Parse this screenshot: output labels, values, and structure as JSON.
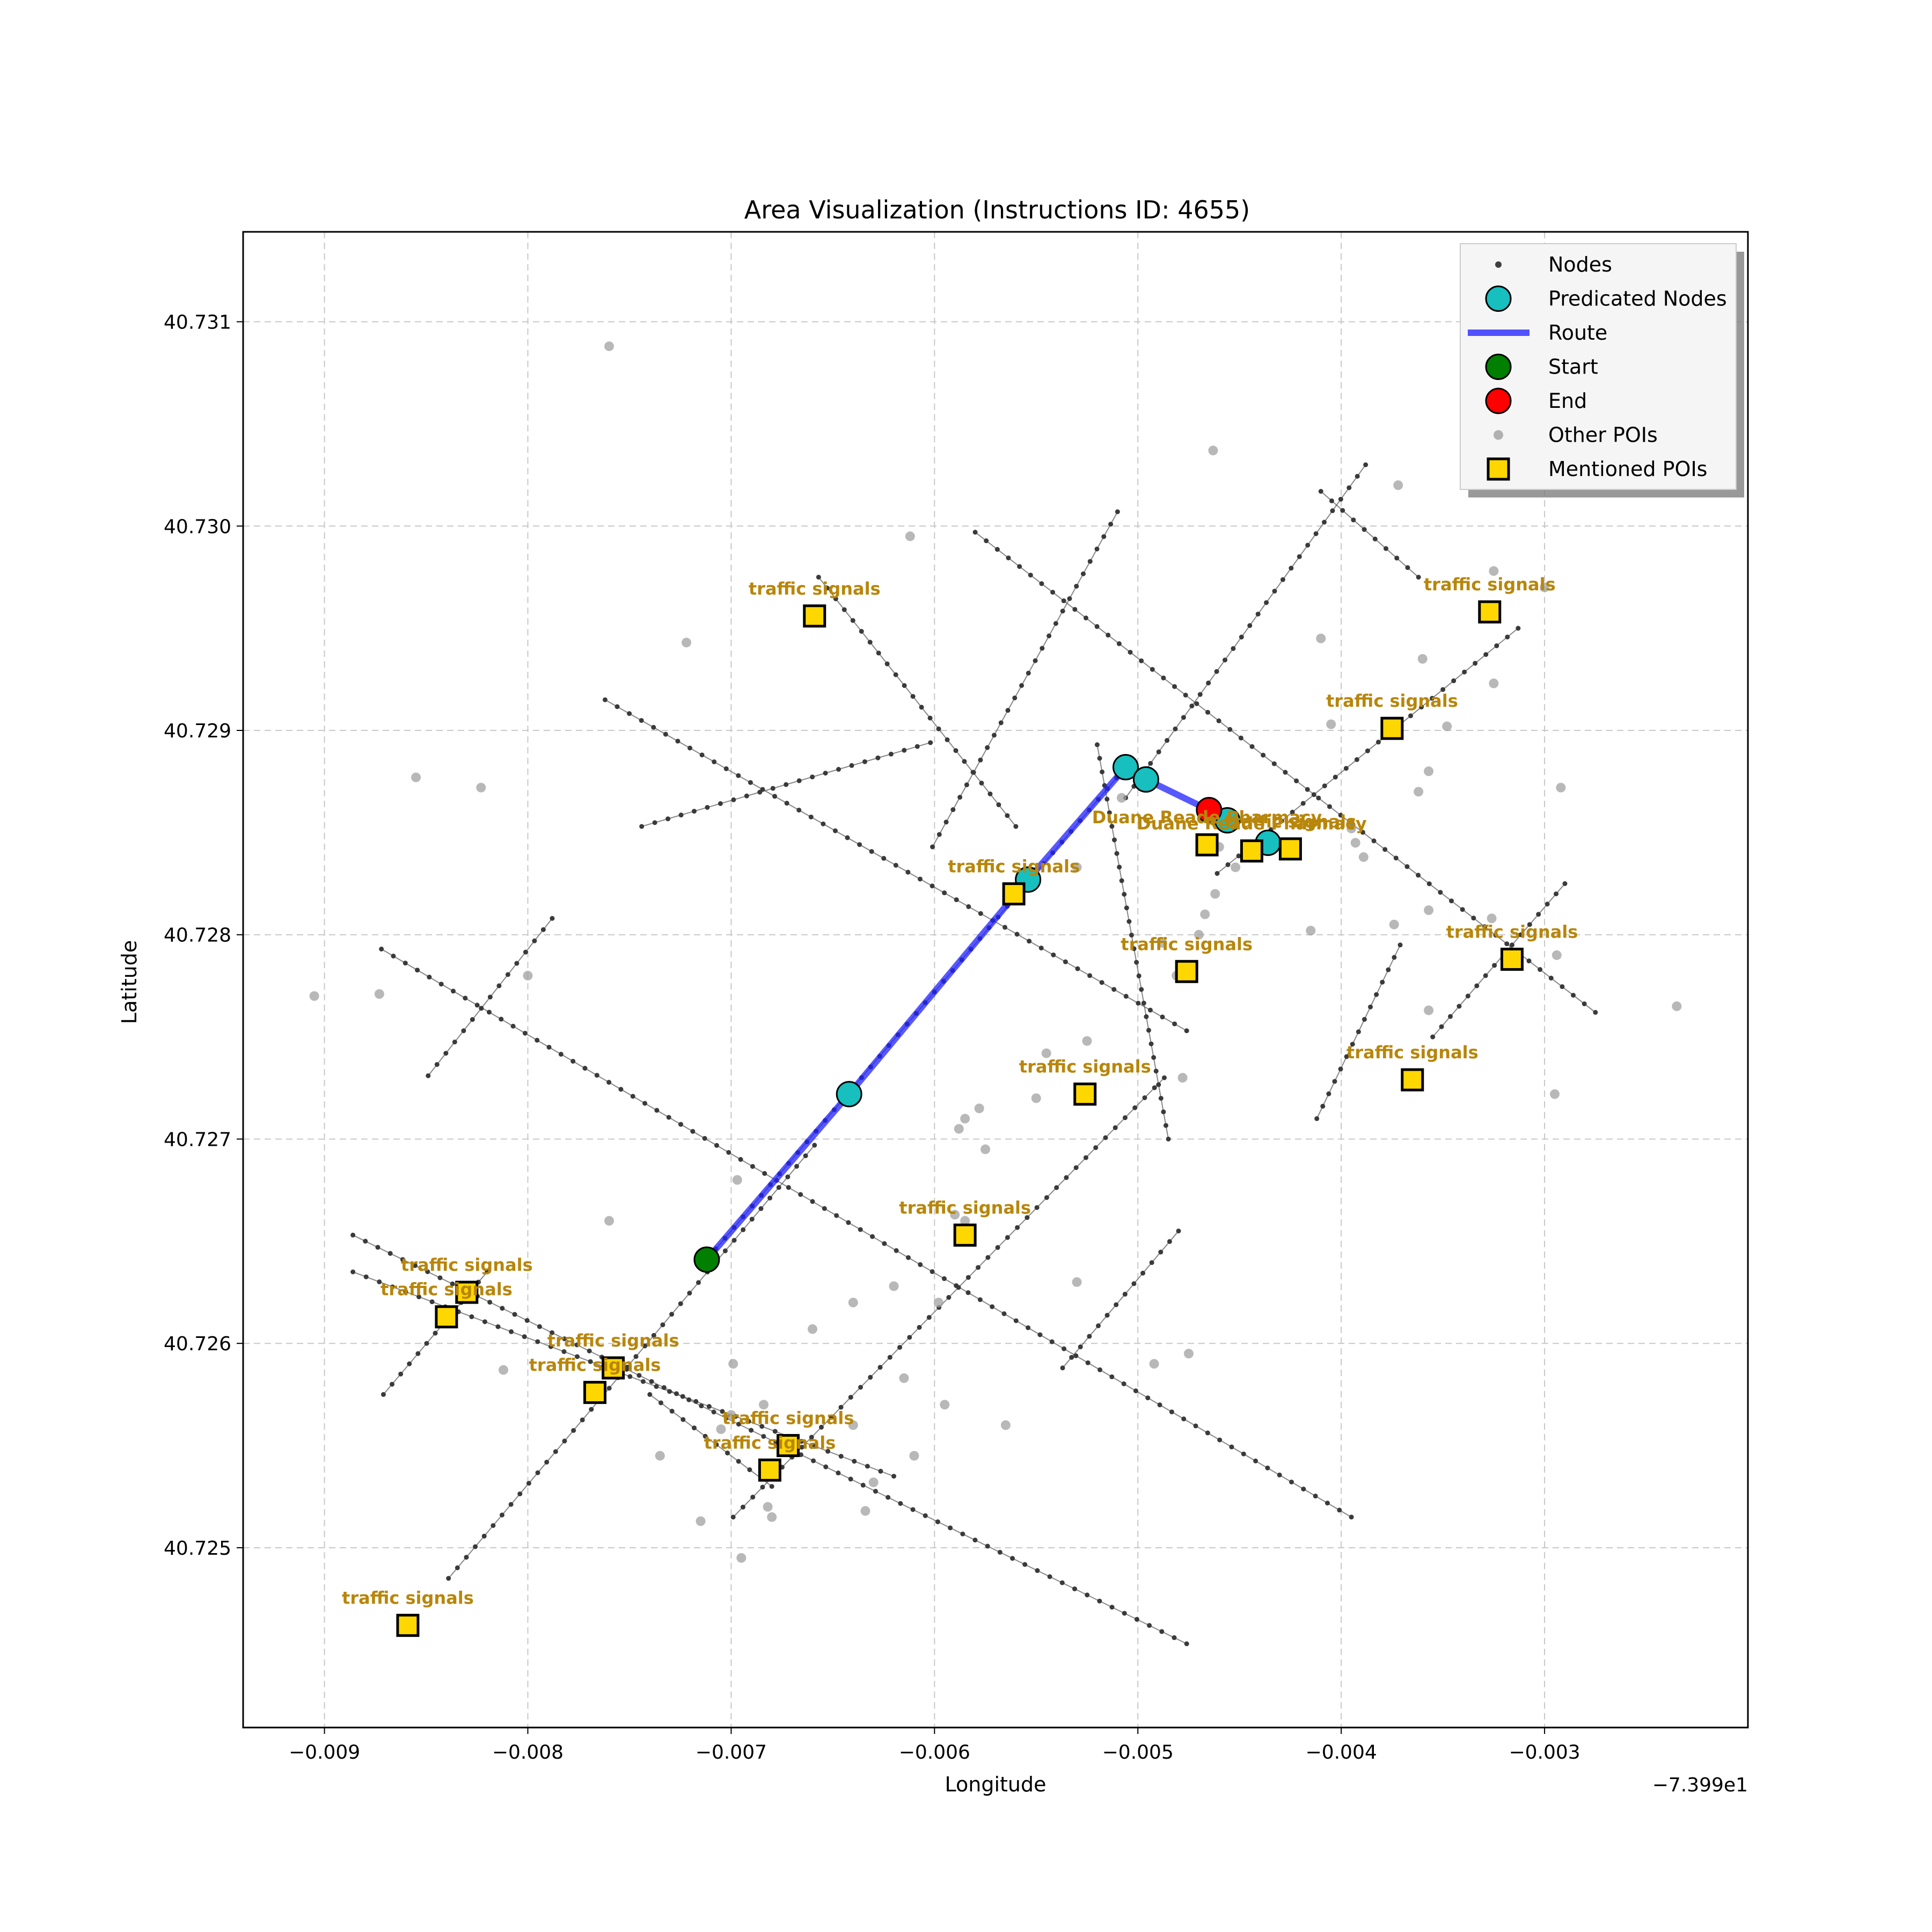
{
  "chart_data": {
    "type": "map",
    "title": "Area Visualization (Instructions ID: 4655)",
    "xlabel": "Longitude",
    "ylabel": "Latitude",
    "x_offset_label": "−7.399e1",
    "xlim": [
      -0.0094,
      -0.002
    ],
    "ylim": [
      40.72412,
      40.73144
    ],
    "x_ticks": [
      -0.009,
      -0.008,
      -0.007,
      -0.006,
      -0.005,
      -0.004,
      -0.003
    ],
    "x_tick_labels": [
      "−0.009",
      "−0.008",
      "−0.007",
      "−0.006",
      "−0.005",
      "−0.004",
      "−0.003"
    ],
    "y_ticks": [
      40.725,
      40.726,
      40.727,
      40.728,
      40.729,
      40.73,
      40.731
    ],
    "y_tick_labels": [
      "40.725",
      "40.726",
      "40.727",
      "40.728",
      "40.729",
      "40.730",
      "40.731"
    ],
    "grid": true,
    "legend_position": "upper right",
    "legend": [
      {
        "label": "Nodes",
        "marker": "small-dot",
        "color": "#404040"
      },
      {
        "label": "Predicated Nodes",
        "marker": "circle",
        "color": "#17bfbf"
      },
      {
        "label": "Route",
        "marker": "line",
        "color": "#4040ff"
      },
      {
        "label": "Start",
        "marker": "circle",
        "color": "#007f00"
      },
      {
        "label": "End",
        "marker": "circle",
        "color": "#ff0000"
      },
      {
        "label": "Other POIs",
        "marker": "dot",
        "color": "#a0a0a0"
      },
      {
        "label": "Mentioned POIs",
        "marker": "square",
        "color": "#ffd700"
      }
    ],
    "streets": [
      [
        [
          -0.00657,
          40.72975
        ],
        [
          -0.0056,
          40.72853
        ]
      ],
      [
        [
          -0.00762,
          40.72915
        ],
        [
          -0.00476,
          40.72753
        ]
      ],
      [
        [
          -0.00872,
          40.72793
        ],
        [
          -0.00395,
          40.72515
        ]
      ],
      [
        [
          -0.00886,
          40.72653
        ],
        [
          -0.00476,
          40.72453
        ]
      ],
      [
        [
          -0.00886,
          40.72635
        ],
        [
          -0.0062,
          40.72535
        ]
      ],
      [
        [
          -0.0074,
          40.72575
        ],
        [
          -0.0068,
          40.7253
        ]
      ],
      [
        [
          -0.0058,
          40.72997
        ],
        [
          -0.00275,
          40.72762
        ]
      ],
      [
        [
          -0.0052,
          40.72893
        ],
        [
          -0.00485,
          40.727
        ]
      ],
      [
        [
          -0.0041,
          40.73017
        ],
        [
          -0.00362,
          40.72975
        ]
      ],
      [
        [
          -0.00744,
          40.72853
        ],
        [
          -0.00602,
          40.72894
        ]
      ],
      [
        [
          -0.00849,
          40.72731
        ],
        [
          -0.00788,
          40.72808
        ]
      ],
      [
        [
          -0.00871,
          40.72575
        ],
        [
          -0.0082,
          40.72635
        ]
      ],
      [
        [
          -0.00839,
          40.72485
        ],
        [
          -0.00659,
          40.72697
        ]
      ],
      [
        [
          -0.00699,
          40.72515
        ],
        [
          -0.00487,
          40.7273
        ]
      ],
      [
        [
          -0.00537,
          40.72588
        ],
        [
          -0.0048,
          40.72655
        ]
      ],
      [
        [
          -0.00412,
          40.7271
        ],
        [
          -0.00371,
          40.72795
        ]
      ],
      [
        [
          -0.00355,
          40.7275
        ],
        [
          -0.0029,
          40.72825
        ]
      ],
      [
        [
          -0.00601,
          40.72843
        ],
        [
          -0.0051,
          40.73007
        ]
      ],
      [
        [
          -0.00506,
          40.72867
        ],
        [
          -0.00388,
          40.7303
        ]
      ],
      [
        [
          -0.00461,
          40.7283
        ],
        [
          -0.00313,
          40.7295
        ]
      ],
      [
        [
          -0.00712,
          40.72641
        ],
        [
          -0.00506,
          40.72882
        ]
      ]
    ],
    "route": [
      [
        -0.00712,
        40.72641
      ],
      [
        -0.00642,
        40.72722
      ],
      [
        -0.00554,
        40.72827
      ],
      [
        -0.00506,
        40.72882
      ],
      [
        -0.00496,
        40.72876
      ],
      [
        -0.00465,
        40.72861
      ]
    ],
    "start": [
      -0.00712,
      40.72641
    ],
    "end": [
      -0.00465,
      40.72861
    ],
    "predicated_nodes": [
      [
        -0.00642,
        40.72722
      ],
      [
        -0.00554,
        40.72827
      ],
      [
        -0.00506,
        40.72882
      ],
      [
        -0.00496,
        40.72876
      ],
      [
        -0.00456,
        40.72856
      ],
      [
        -0.00436,
        40.72845
      ]
    ],
    "other_pois": [
      [
        -0.0076,
        40.73088
      ],
      [
        -0.00463,
        40.73037
      ],
      [
        -0.00612,
        40.72995
      ],
      [
        -0.00372,
        40.7302
      ],
      [
        -0.00722,
        40.72943
      ],
      [
        -0.0041,
        40.72945
      ],
      [
        -0.00325,
        40.72978
      ],
      [
        -0.003,
        40.7297
      ],
      [
        -0.0036,
        40.72935
      ],
      [
        -0.00325,
        40.72923
      ],
      [
        -0.00405,
        40.72903
      ],
      [
        -0.00348,
        40.72902
      ],
      [
        -0.00855,
        40.72877
      ],
      [
        -0.00823,
        40.72872
      ],
      [
        -0.00508,
        40.72867
      ],
      [
        -0.00357,
        40.7288
      ],
      [
        -0.00362,
        40.7287
      ],
      [
        -0.00292,
        40.72872
      ],
      [
        -0.00395,
        40.72852
      ],
      [
        -0.00389,
        40.72838
      ],
      [
        -0.00393,
        40.72845
      ],
      [
        -0.0053,
        40.72833
      ],
      [
        -0.00462,
        40.7282
      ],
      [
        -0.00467,
        40.7281
      ],
      [
        -0.0046,
        40.72843
      ],
      [
        -0.00452,
        40.72833
      ],
      [
        -0.00357,
        40.72812
      ],
      [
        -0.00326,
        40.72808
      ],
      [
        -0.00374,
        40.72805
      ],
      [
        -0.00415,
        40.72802
      ],
      [
        -0.0047,
        40.728
      ],
      [
        -0.00488,
        40.72796
      ],
      [
        -0.00294,
        40.7279
      ],
      [
        -0.00905,
        40.7277
      ],
      [
        -0.00873,
        40.72771
      ],
      [
        -0.008,
        40.7278
      ],
      [
        -0.00481,
        40.7278
      ],
      [
        -0.00357,
        40.72763
      ],
      [
        -0.00235,
        40.72765
      ],
      [
        -0.00545,
        40.72742
      ],
      [
        -0.00525,
        40.72748
      ],
      [
        -0.00478,
        40.7273
      ],
      [
        -0.0055,
        40.7272
      ],
      [
        -0.00295,
        40.72722
      ],
      [
        -0.00578,
        40.72715
      ],
      [
        -0.00585,
        40.7271
      ],
      [
        -0.00588,
        40.72705
      ],
      [
        -0.00575,
        40.72695
      ],
      [
        -0.00697,
        40.7268
      ],
      [
        -0.0059,
        40.72663
      ],
      [
        -0.00585,
        40.7266
      ],
      [
        -0.0076,
        40.7266
      ],
      [
        -0.0062,
        40.72628
      ],
      [
        -0.0064,
        40.7262
      ],
      [
        -0.00598,
        40.7262
      ],
      [
        -0.0053,
        40.7263
      ],
      [
        -0.0066,
        40.72607
      ],
      [
        -0.00475,
        40.72595
      ],
      [
        -0.00492,
        40.7259
      ],
      [
        -0.00812,
        40.72587
      ],
      [
        -0.00699,
        40.7259
      ],
      [
        -0.00565,
        40.7256
      ],
      [
        -0.00615,
        40.72583
      ],
      [
        -0.00595,
        40.7257
      ],
      [
        -0.0064,
        40.7256
      ],
      [
        -0.007,
        40.72565
      ],
      [
        -0.00684,
        40.7257
      ],
      [
        -0.0061,
        40.72545
      ],
      [
        -0.0063,
        40.72532
      ],
      [
        -0.00715,
        40.72513
      ],
      [
        -0.00682,
        40.7252
      ],
      [
        -0.0068,
        40.72515
      ],
      [
        -0.00695,
        40.72495
      ],
      [
        -0.00634,
        40.72518
      ],
      [
        -0.00735,
        40.72545
      ],
      [
        -0.00705,
        40.72558
      ]
    ],
    "mentioned_pois": [
      {
        "lon": -0.00659,
        "lat": 40.72956,
        "label": "traffic signals"
      },
      {
        "lon": -0.00327,
        "lat": 40.72958,
        "label": "traffic signals"
      },
      {
        "lon": -0.00375,
        "lat": 40.72901,
        "label": "traffic signals"
      },
      {
        "lon": -0.00466,
        "lat": 40.72844,
        "label": "Duane Reade Pharmacy"
      },
      {
        "lon": -0.00444,
        "lat": 40.72841,
        "label": "Duane Reade Pharmacy"
      },
      {
        "lon": -0.00425,
        "lat": 40.72842,
        "label": "traffic signals"
      },
      {
        "lon": -0.00561,
        "lat": 40.7282,
        "label": "traffic signals"
      },
      {
        "lon": -0.00476,
        "lat": 40.72782,
        "label": "traffic signals"
      },
      {
        "lon": -0.00316,
        "lat": 40.72788,
        "label": "traffic signals"
      },
      {
        "lon": -0.00526,
        "lat": 40.72722,
        "label": "traffic signals"
      },
      {
        "lon": -0.00365,
        "lat": 40.72729,
        "label": "traffic signals"
      },
      {
        "lon": -0.00585,
        "lat": 40.72653,
        "label": "traffic signals"
      },
      {
        "lon": -0.0083,
        "lat": 40.72625,
        "label": "traffic signals"
      },
      {
        "lon": -0.0084,
        "lat": 40.72613,
        "label": "traffic signals"
      },
      {
        "lon": -0.00758,
        "lat": 40.72588,
        "label": "traffic signals"
      },
      {
        "lon": -0.00767,
        "lat": 40.72576,
        "label": "traffic signals"
      },
      {
        "lon": -0.00672,
        "lat": 40.7255,
        "label": "traffic signals"
      },
      {
        "lon": -0.00681,
        "lat": 40.72538,
        "label": "traffic signals"
      },
      {
        "lon": -0.00859,
        "lat": 40.72462,
        "label": "traffic signals"
      }
    ]
  }
}
